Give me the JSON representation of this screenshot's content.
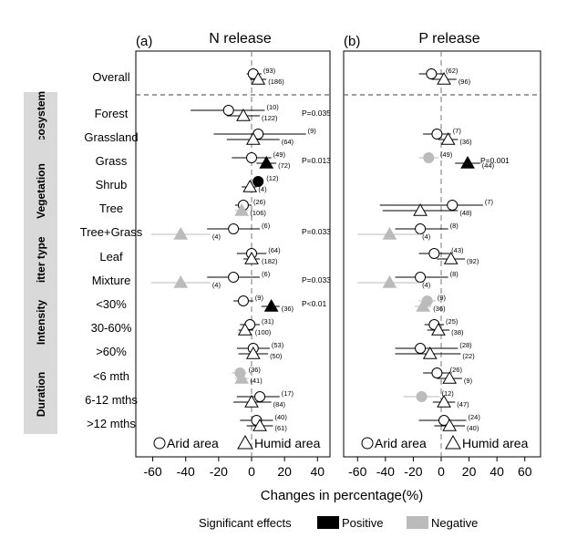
{
  "chart_data": [
    {
      "type": "scatter",
      "panel_label": "(a)",
      "title": "N release",
      "xlim": [
        -70,
        45
      ],
      "xticks": [
        -60,
        -40,
        -20,
        0,
        20,
        40
      ],
      "points": [
        {
          "row": 0,
          "group": "arid",
          "mean": 1,
          "ci": [
            -3,
            6
          ],
          "n": "(93)",
          "sig": "none"
        },
        {
          "row": 0,
          "group": "humid",
          "mean": 4,
          "ci": [
            -1,
            9
          ],
          "n": "(186)",
          "sig": "none"
        },
        {
          "row": 1,
          "group": "arid",
          "mean": -14,
          "ci": [
            -37,
            8
          ],
          "n": "(10)",
          "sig": "none"
        },
        {
          "row": 1,
          "group": "humid",
          "mean": -5,
          "ci": [
            -15,
            5
          ],
          "n": "(122)",
          "sig": "none"
        },
        {
          "row": 2,
          "group": "arid",
          "mean": 4,
          "ci": [
            -23,
            33
          ],
          "n": "(9)",
          "sig": "none"
        },
        {
          "row": 2,
          "group": "humid",
          "mean": 1,
          "ci": [
            -15,
            17
          ],
          "n": "(64)",
          "sig": "none"
        },
        {
          "row": 3,
          "group": "arid",
          "mean": 0,
          "ci": [
            -12,
            12
          ],
          "n": "(49)",
          "sig": "none"
        },
        {
          "row": 3,
          "group": "humid",
          "mean": 9,
          "ci": [
            3,
            15
          ],
          "n": "(72)",
          "sig": "positive"
        },
        {
          "row": 4,
          "group": "arid",
          "mean": 4,
          "ci": [
            1,
            7
          ],
          "n": "(12)",
          "sig": "positive"
        },
        {
          "row": 4,
          "group": "humid",
          "mean": -1,
          "ci": [
            -6,
            3
          ],
          "n": "(4)",
          "sig": "none"
        },
        {
          "row": 5,
          "group": "arid",
          "mean": -5,
          "ci": [
            -10,
            0
          ],
          "n": "(26)",
          "sig": "none"
        },
        {
          "row": 5,
          "group": "humid",
          "mean": -6,
          "ci": [
            -10,
            -2
          ],
          "n": "(106)",
          "sig": "negative"
        },
        {
          "row": 6,
          "group": "arid",
          "mean": -11,
          "ci": [
            -27,
            5
          ],
          "n": "(6)",
          "sig": "none"
        },
        {
          "row": 6,
          "group": "humid",
          "mean": -43,
          "ci": [
            -61,
            -25
          ],
          "n": "(4)",
          "sig": "negative"
        },
        {
          "row": 7,
          "group": "arid",
          "mean": 0,
          "ci": [
            -9,
            9
          ],
          "n": "(64)",
          "sig": "none"
        },
        {
          "row": 7,
          "group": "humid",
          "mean": 0,
          "ci": [
            -5,
            5
          ],
          "n": "(182)",
          "sig": "none"
        },
        {
          "row": 8,
          "group": "arid",
          "mean": -11,
          "ci": [
            -27,
            5
          ],
          "n": "(6)",
          "sig": "none"
        },
        {
          "row": 8,
          "group": "humid",
          "mean": -43,
          "ci": [
            -61,
            -25
          ],
          "n": "(4)",
          "sig": "negative"
        },
        {
          "row": 9,
          "group": "arid",
          "mean": -5,
          "ci": [
            -11,
            1
          ],
          "n": "(9)",
          "sig": "none"
        },
        {
          "row": 9,
          "group": "humid",
          "mean": 12,
          "ci": [
            6,
            17
          ],
          "n": "(36)",
          "sig": "positive"
        },
        {
          "row": 10,
          "group": "arid",
          "mean": -1,
          "ci": [
            -7,
            5
          ],
          "n": "(31)",
          "sig": "none"
        },
        {
          "row": 10,
          "group": "humid",
          "mean": -4,
          "ci": [
            -8,
            1
          ],
          "n": "(100)",
          "sig": "none"
        },
        {
          "row": 11,
          "group": "arid",
          "mean": 1,
          "ci": [
            -9,
            11
          ],
          "n": "(53)",
          "sig": "none"
        },
        {
          "row": 11,
          "group": "humid",
          "mean": 1,
          "ci": [
            -8,
            10
          ],
          "n": "(50)",
          "sig": "none"
        },
        {
          "row": 12,
          "group": "arid",
          "mean": -7,
          "ci": [
            -12,
            -3
          ],
          "n": "(36)",
          "sig": "negative"
        },
        {
          "row": 12,
          "group": "humid",
          "mean": -6,
          "ci": [
            -10,
            -2
          ],
          "n": "(41)",
          "sig": "negative"
        },
        {
          "row": 13,
          "group": "arid",
          "mean": 5,
          "ci": [
            -9,
            17
          ],
          "n": "(17)",
          "sig": "none"
        },
        {
          "row": 13,
          "group": "humid",
          "mean": 0,
          "ci": [
            -11,
            12
          ],
          "n": "(84)",
          "sig": "none"
        },
        {
          "row": 14,
          "group": "arid",
          "mean": 3,
          "ci": [
            -7,
            13
          ],
          "n": "(40)",
          "sig": "none"
        },
        {
          "row": 14,
          "group": "humid",
          "mean": 5,
          "ci": [
            -3,
            13
          ],
          "n": "(61)",
          "sig": "none"
        }
      ],
      "p_values": [
        {
          "row": 1,
          "text": "P=0.035"
        },
        {
          "row": 3,
          "text": "P=0.013"
        },
        {
          "row": 6,
          "text": "P=0.033"
        },
        {
          "row": 8,
          "text": "P=0.033"
        },
        {
          "row": 9,
          "text": "P<0.01"
        }
      ]
    },
    {
      "type": "scatter",
      "panel_label": "(b)",
      "title": "P release",
      "xlim": [
        -70,
        70
      ],
      "xticks": [
        -60,
        -40,
        -20,
        0,
        20,
        40,
        60
      ],
      "points": [
        {
          "row": 0,
          "group": "arid",
          "mean": -7,
          "ci": [
            -16,
            2
          ],
          "n": "(62)",
          "sig": "none"
        },
        {
          "row": 0,
          "group": "humid",
          "mean": 2,
          "ci": [
            -7,
            11
          ],
          "n": "(96)",
          "sig": "none"
        },
        {
          "row": 2,
          "group": "arid",
          "mean": -3,
          "ci": [
            -13,
            7
          ],
          "n": "(7)",
          "sig": "none"
        },
        {
          "row": 2,
          "group": "humid",
          "mean": 5,
          "ci": [
            -2,
            12
          ],
          "n": "(36)",
          "sig": "none"
        },
        {
          "row": 3,
          "group": "arid",
          "mean": -9,
          "ci": [
            -16,
            -2
          ],
          "n": "(49)",
          "sig": "negative"
        },
        {
          "row": 3,
          "group": "humid",
          "mean": 19,
          "ci": [
            10,
            28
          ],
          "n": "(44)",
          "sig": "positive"
        },
        {
          "row": 5,
          "group": "arid",
          "mean": 8,
          "ci": [
            -44,
            30
          ],
          "n": "(7)",
          "sig": "none"
        },
        {
          "row": 5,
          "group": "humid",
          "mean": -15,
          "ci": [
            -42,
            12
          ],
          "n": "(48)",
          "sig": "none"
        },
        {
          "row": 6,
          "group": "arid",
          "mean": -15,
          "ci": [
            -33,
            5
          ],
          "n": "(8)",
          "sig": "none"
        },
        {
          "row": 6,
          "group": "humid",
          "mean": -37,
          "ci": [
            -60,
            -15
          ],
          "n": "(4)",
          "sig": "negative"
        },
        {
          "row": 7,
          "group": "arid",
          "mean": -5,
          "ci": [
            -16,
            6
          ],
          "n": "(43)",
          "sig": "none"
        },
        {
          "row": 7,
          "group": "humid",
          "mean": 7,
          "ci": [
            -3,
            17
          ],
          "n": "(92)",
          "sig": "none"
        },
        {
          "row": 8,
          "group": "arid",
          "mean": -15,
          "ci": [
            -33,
            5
          ],
          "n": "(8)",
          "sig": "none"
        },
        {
          "row": 8,
          "group": "humid",
          "mean": -37,
          "ci": [
            -60,
            -15
          ],
          "n": "(4)",
          "sig": "negative"
        },
        {
          "row": 9,
          "group": "arid",
          "mean": -10,
          "ci": [
            -16,
            -4
          ],
          "n": "(9)",
          "sig": "negative"
        },
        {
          "row": 9,
          "group": "humid",
          "mean": -13,
          "ci": [
            -19,
            -7
          ],
          "n": "(36)",
          "sig": "negative"
        },
        {
          "row": 10,
          "group": "arid",
          "mean": -5,
          "ci": [
            -12,
            2
          ],
          "n": "(25)",
          "sig": "none"
        },
        {
          "row": 10,
          "group": "humid",
          "mean": -2,
          "ci": [
            -10,
            6
          ],
          "n": "(38)",
          "sig": "none"
        },
        {
          "row": 11,
          "group": "arid",
          "mean": -15,
          "ci": [
            -33,
            12
          ],
          "n": "(28)",
          "sig": "none"
        },
        {
          "row": 11,
          "group": "humid",
          "mean": -8,
          "ci": [
            -33,
            14
          ],
          "n": "(22)",
          "sig": "none"
        },
        {
          "row": 12,
          "group": "arid",
          "mean": -3,
          "ci": [
            -13,
            5
          ],
          "n": "(26)",
          "sig": "none"
        },
        {
          "row": 12,
          "group": "humid",
          "mean": 6,
          "ci": [
            -3,
            15
          ],
          "n": "(9)",
          "sig": "none"
        },
        {
          "row": 13,
          "group": "arid",
          "mean": -14,
          "ci": [
            -27,
            -1
          ],
          "n": "(12)",
          "sig": "negative"
        },
        {
          "row": 13,
          "group": "humid",
          "mean": 2,
          "ci": [
            -6,
            10
          ],
          "n": "(47)",
          "sig": "none"
        },
        {
          "row": 14,
          "group": "arid",
          "mean": 2,
          "ci": [
            -16,
            18
          ],
          "n": "(24)",
          "sig": "none"
        },
        {
          "row": 14,
          "group": "humid",
          "mean": 6,
          "ci": [
            -5,
            17
          ],
          "n": "(40)",
          "sig": "none"
        }
      ],
      "p_values": [
        {
          "row": 3,
          "text": "P=0.001"
        }
      ]
    }
  ],
  "row_labels": [
    "Overall",
    "Forest",
    "Grassland",
    "Grass",
    "Shrub",
    "Tree",
    "Tree+Grass",
    "Leaf",
    "Mixture",
    "<30%",
    "30-60%",
    ">60%",
    "<6 mth",
    "6-12 mths",
    ">12 mths"
  ],
  "groups": [
    {
      "label": "Ecosystem",
      "rows": [
        1,
        2
      ]
    },
    {
      "label": "Vegetation",
      "rows": [
        3,
        6
      ]
    },
    {
      "label": "Litter type",
      "rows": [
        7,
        8
      ]
    },
    {
      "label": "Intensity",
      "rows": [
        9,
        11
      ]
    },
    {
      "label": "Duration",
      "rows": [
        12,
        14
      ]
    }
  ],
  "xlabel": "Changes in percentage(%)",
  "legend_groups": {
    "arid": "Arid area",
    "humid": "Humid area"
  },
  "legend_sig": {
    "title": "Significant effects",
    "positive": "Positive",
    "negative": "Negative"
  },
  "colors": {
    "positive": "#000000",
    "negative": "#bbbbbb",
    "none": "#ffffff",
    "group_box": "#d9d9d9",
    "dashed": "#777777"
  }
}
